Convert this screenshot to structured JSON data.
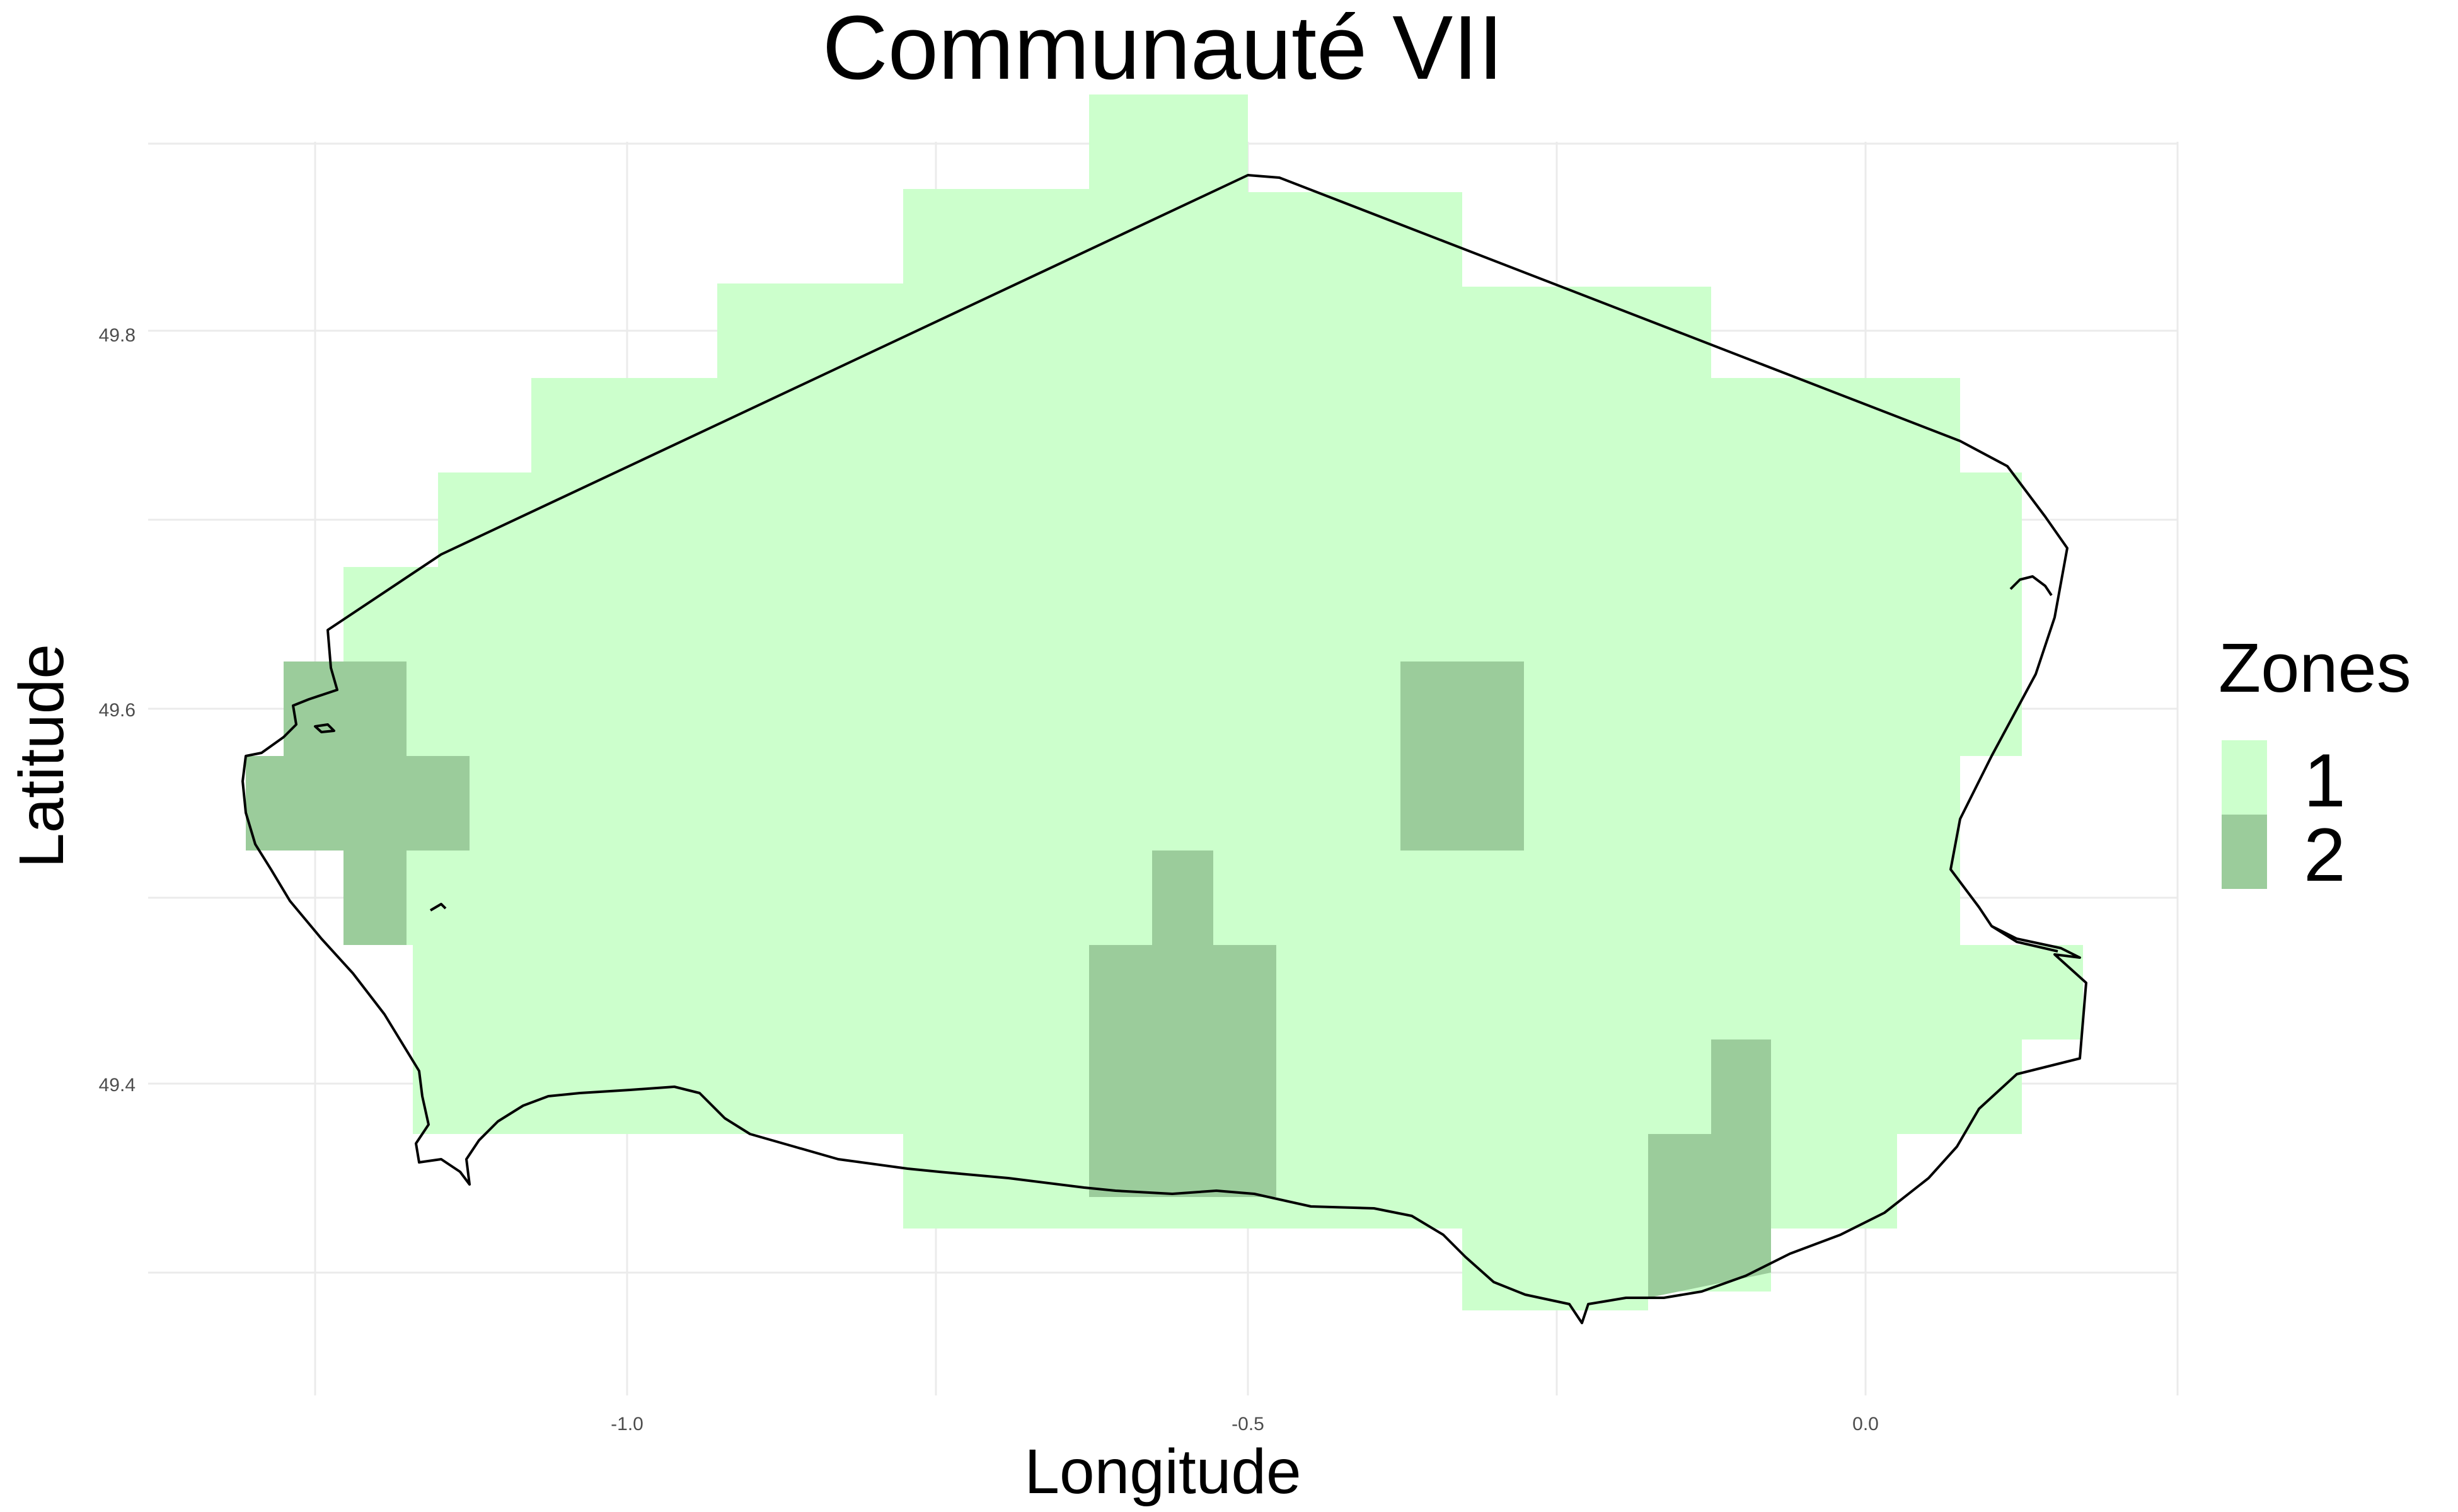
{
  "title": "Communauté VII",
  "axes": {
    "x": {
      "label": "Longitude",
      "ticks": [
        "-1.0",
        "-0.5",
        "0.0"
      ],
      "tick_values": [
        -1.0,
        -0.5,
        0.0
      ]
    },
    "y": {
      "label": "Latitude",
      "ticks": [
        "49.4",
        "49.6",
        "49.8"
      ],
      "tick_values": [
        49.4,
        49.6,
        49.8
      ]
    },
    "xlim": [
      -1.5,
      0.25
    ],
    "ylim": [
      49.25,
      49.9
    ]
  },
  "legend": {
    "title": "Zones",
    "placement": "right",
    "items": [
      {
        "label": "1",
        "color": "#ccffcc"
      },
      {
        "label": "2",
        "color": "#9bcc9b"
      }
    ]
  },
  "map": {
    "cell_size_degrees": {
      "lon": 0.1,
      "lat": 0.05
    },
    "background": "#ffffff",
    "grid": true,
    "grid_color": "#ebebeb",
    "outline_color": "#000000"
  }
}
